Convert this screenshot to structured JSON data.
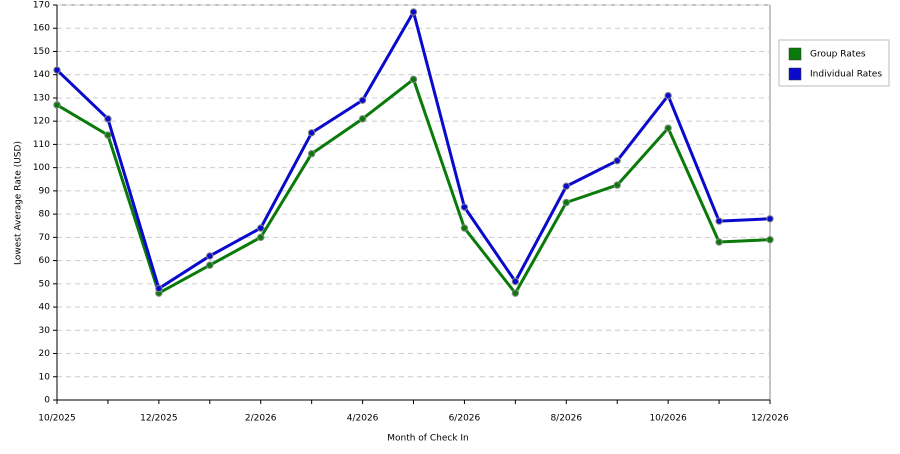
{
  "chart_data": {
    "type": "line",
    "x_label": "Month of Check In",
    "y_label": "Lowest Average Rate (USD)",
    "categories": [
      "10/2025",
      null,
      "12/2025",
      null,
      "2/2026",
      null,
      "4/2026",
      null,
      "6/2026",
      null,
      "8/2026",
      null,
      "10/2026",
      null,
      "12/2026"
    ],
    "series": [
      {
        "name": "Group Rates",
        "color": "#0a7a0a",
        "values": [
          127,
          114,
          46,
          58,
          70,
          106,
          121,
          138,
          74,
          46,
          85,
          92.5,
          117,
          68,
          69
        ]
      },
      {
        "name": "Individual Rates",
        "color": "#0a0acc",
        "values": [
          142,
          121,
          48,
          62,
          74,
          115,
          129,
          167,
          83,
          51,
          92,
          103,
          131,
          77,
          78
        ]
      }
    ],
    "ylim": [
      0,
      170
    ],
    "yticks": [
      0,
      10,
      20,
      30,
      40,
      50,
      60,
      70,
      80,
      90,
      100,
      110,
      120,
      130,
      140,
      150,
      160,
      170
    ],
    "grid": true,
    "legend": "right"
  }
}
